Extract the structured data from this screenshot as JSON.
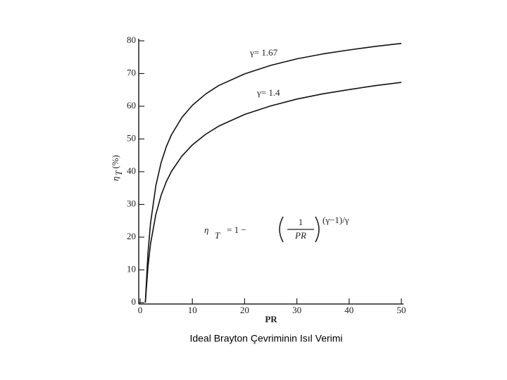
{
  "chart_data": {
    "type": "line",
    "x_label": "PR",
    "y_label": "η",
    "y_label_sub": "T",
    "y_label_unit": "(%)",
    "caption": "Ideal Brayton Çevriminin Isıl Verimi",
    "formula": {
      "lhs": "η",
      "lhs_sub": "T",
      "eq": "= 1 −",
      "num": "1",
      "den": "PR",
      "exp": "(γ−1)/γ"
    },
    "x": [
      1,
      1.5,
      2,
      3,
      4,
      5,
      6,
      8,
      10,
      12.5,
      15,
      20,
      25,
      30,
      35,
      40,
      45,
      50
    ],
    "series": [
      {
        "name": "γ= 1.67",
        "color": "#111111",
        "values": [
          0,
          15.0,
          24.3,
          35.7,
          42.7,
          47.6,
          51.3,
          56.6,
          60.3,
          63.7,
          66.3,
          69.9,
          72.5,
          74.5,
          76.0,
          77.2,
          78.3,
          79.2
        ]
      },
      {
        "name": "γ= 1.4",
        "color": "#111111",
        "values": [
          0,
          10.9,
          18.0,
          26.9,
          32.7,
          36.9,
          40.1,
          44.8,
          48.2,
          51.4,
          53.9,
          57.5,
          60.1,
          62.2,
          63.8,
          65.1,
          66.3,
          67.3
        ]
      }
    ],
    "xlim": [
      0,
      50
    ],
    "ylim": [
      0,
      80
    ],
    "xticks": [
      0,
      10,
      20,
      30,
      40,
      50
    ],
    "yticks": [
      0,
      10,
      20,
      30,
      40,
      50,
      60,
      70,
      80
    ]
  }
}
